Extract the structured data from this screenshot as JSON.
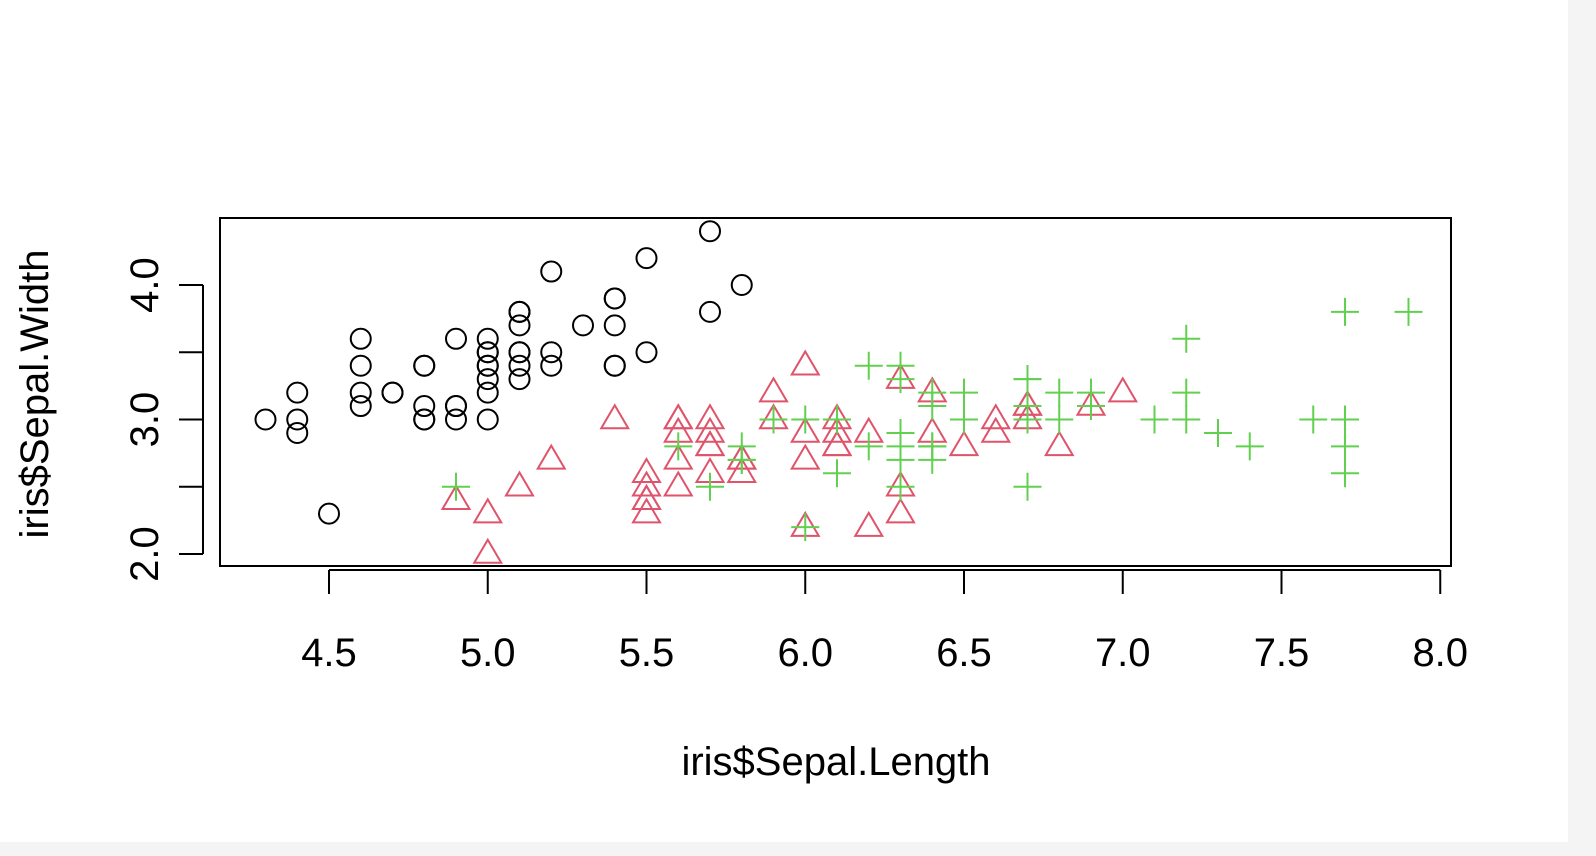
{
  "chart_data": {
    "type": "scatter",
    "title": "",
    "xlabel": "iris$Sepal.Length",
    "ylabel": "iris$Sepal.Width",
    "xlim": [
      4.3,
      7.9
    ],
    "ylim": [
      2.0,
      4.4
    ],
    "x_ticks": [
      "4.5",
      "5.0",
      "5.5",
      "6.0",
      "6.5",
      "7.0",
      "7.5",
      "8.0"
    ],
    "y_ticks": [
      "2.0",
      "3.0",
      "4.0"
    ],
    "y_tick_marks": [
      2.0,
      2.5,
      3.0,
      3.5,
      4.0
    ],
    "grid": false,
    "legend": "none",
    "series": [
      {
        "marker": "circle",
        "color": "#000000",
        "x": [
          5.1,
          4.9,
          4.7,
          4.6,
          5.0,
          5.4,
          4.6,
          5.0,
          4.4,
          4.9,
          5.4,
          4.8,
          4.8,
          4.3,
          5.8,
          5.7,
          5.4,
          5.1,
          5.7,
          5.1,
          5.4,
          5.1,
          4.6,
          5.1,
          4.8,
          5.0,
          5.0,
          5.2,
          5.2,
          4.7,
          4.8,
          5.4,
          5.2,
          5.5,
          4.9,
          5.0,
          5.5,
          4.9,
          4.4,
          5.1,
          5.0,
          4.5,
          4.4,
          5.0,
          5.1,
          4.8,
          5.1,
          4.6,
          5.3,
          5.0
        ],
        "y": [
          3.5,
          3.0,
          3.2,
          3.1,
          3.6,
          3.9,
          3.4,
          3.4,
          2.9,
          3.1,
          3.7,
          3.4,
          3.0,
          3.0,
          4.0,
          4.4,
          3.9,
          3.5,
          3.8,
          3.8,
          3.4,
          3.7,
          3.6,
          3.3,
          3.4,
          3.0,
          3.4,
          3.5,
          3.4,
          3.2,
          3.1,
          3.4,
          4.1,
          4.2,
          3.1,
          3.2,
          3.5,
          3.6,
          3.0,
          3.4,
          3.5,
          2.3,
          3.2,
          3.5,
          3.8,
          3.0,
          3.8,
          3.2,
          3.7,
          3.3
        ]
      },
      {
        "marker": "triangle",
        "color": "#df536b",
        "x": [
          7.0,
          6.4,
          6.9,
          5.5,
          6.5,
          5.7,
          6.3,
          4.9,
          6.6,
          5.2,
          5.0,
          5.9,
          6.0,
          6.1,
          5.6,
          6.7,
          5.6,
          5.8,
          6.2,
          5.6,
          5.9,
          6.1,
          6.3,
          6.1,
          6.4,
          6.6,
          6.8,
          6.7,
          6.0,
          5.7,
          5.5,
          5.5,
          5.8,
          6.0,
          5.4,
          6.0,
          6.7,
          6.3,
          5.6,
          5.5,
          5.5,
          6.1,
          5.8,
          5.0,
          5.6,
          5.7,
          5.7,
          6.2,
          5.1,
          5.7
        ],
        "y": [
          3.2,
          3.2,
          3.1,
          2.3,
          2.8,
          2.8,
          3.3,
          2.4,
          2.9,
          2.7,
          2.0,
          3.0,
          2.2,
          2.9,
          2.9,
          3.1,
          3.0,
          2.7,
          2.2,
          2.5,
          3.2,
          2.8,
          2.5,
          2.8,
          2.9,
          3.0,
          2.8,
          3.0,
          2.9,
          2.6,
          2.4,
          2.4,
          2.7,
          2.7,
          3.0,
          3.4,
          3.1,
          2.3,
          3.0,
          2.5,
          2.6,
          3.0,
          2.6,
          2.3,
          2.7,
          3.0,
          2.9,
          2.9,
          2.5,
          2.8
        ]
      },
      {
        "marker": "plus",
        "color": "#61d04f",
        "x": [
          6.3,
          5.8,
          7.1,
          6.3,
          6.5,
          7.6,
          4.9,
          7.3,
          6.7,
          7.2,
          6.5,
          6.4,
          6.8,
          5.7,
          5.8,
          6.4,
          6.5,
          7.7,
          7.7,
          6.0,
          6.9,
          5.6,
          7.7,
          6.3,
          6.7,
          7.2,
          6.2,
          6.1,
          6.4,
          7.2,
          7.4,
          7.9,
          6.4,
          6.3,
          6.1,
          7.7,
          6.3,
          6.4,
          6.0,
          6.9,
          6.7,
          6.9,
          5.8,
          6.8,
          6.7,
          6.7,
          6.3,
          6.5,
          6.2,
          5.9
        ],
        "y": [
          3.3,
          2.7,
          3.0,
          2.9,
          3.0,
          3.0,
          2.5,
          2.9,
          2.5,
          3.6,
          3.2,
          2.7,
          3.0,
          2.5,
          2.8,
          3.2,
          3.0,
          3.8,
          2.6,
          2.2,
          3.2,
          2.8,
          2.8,
          2.7,
          3.3,
          3.2,
          2.8,
          3.0,
          2.8,
          3.0,
          2.8,
          3.8,
          2.8,
          2.8,
          2.6,
          3.0,
          3.4,
          3.1,
          3.0,
          3.1,
          3.1,
          3.1,
          2.7,
          3.2,
          3.3,
          3.0,
          2.5,
          3.0,
          3.4,
          3.0
        ]
      }
    ]
  }
}
